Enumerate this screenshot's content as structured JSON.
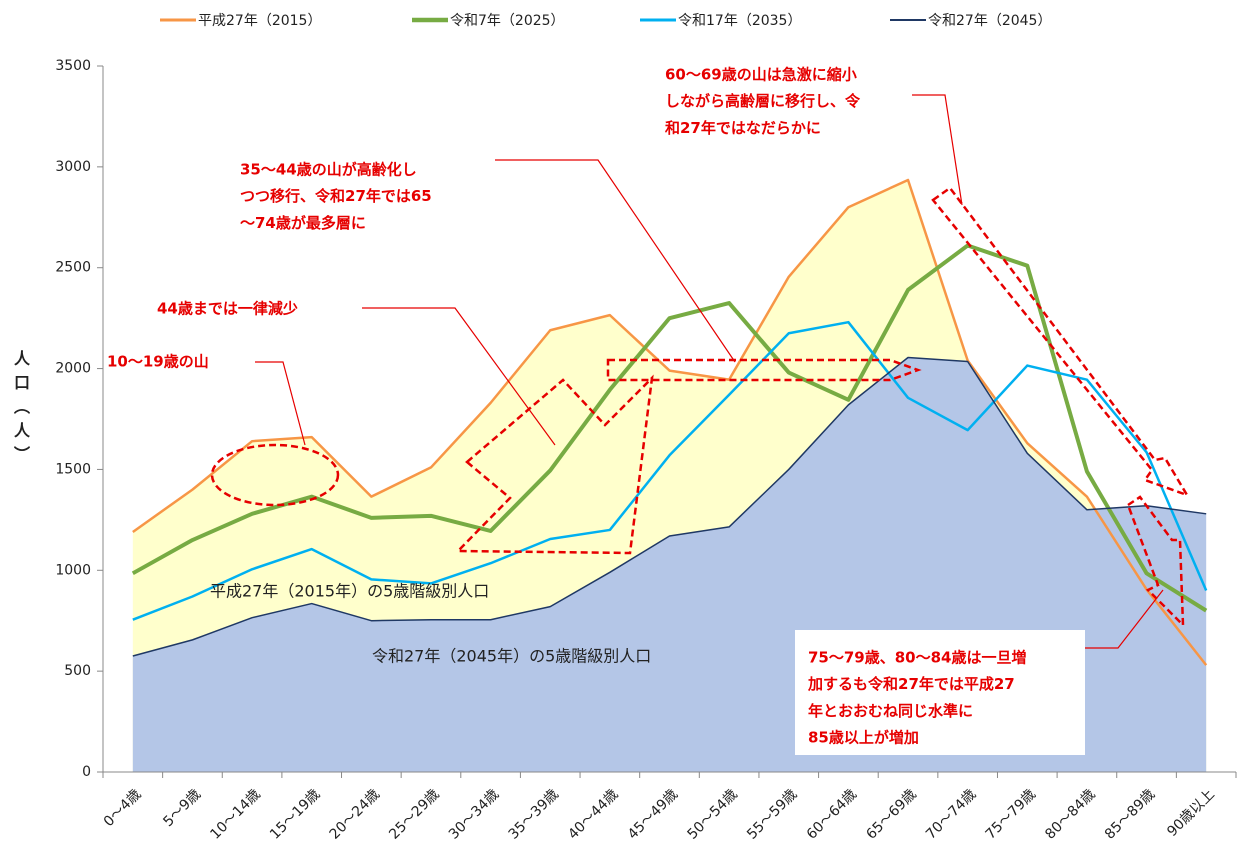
{
  "chart_data": {
    "type": "line",
    "y_label": "人口（人）",
    "categories": [
      "0〜4歳",
      "5〜9歳",
      "10〜14歳",
      "15〜19歳",
      "20〜24歳",
      "25〜29歳",
      "30〜34歳",
      "35〜39歳",
      "40〜44歳",
      "45〜49歳",
      "50〜54歳",
      "55〜59歳",
      "60〜64歳",
      "65〜69歳",
      "70〜74歳",
      "75〜79歳",
      "80〜84歳",
      "85〜89歳",
      "90歳以上"
    ],
    "series": [
      {
        "name": "平成27年（2015）",
        "color": "#f79646",
        "fill": "#ffffcc",
        "values": [
          1190,
          1400,
          1640,
          1660,
          1365,
          1510,
          1830,
          2190,
          2265,
          1990,
          1945,
          2455,
          2800,
          2935,
          2040,
          1630,
          1365,
          905,
          530
        ]
      },
      {
        "name": "令和7年（2025）",
        "color": "#77ab43",
        "values": [
          985,
          1150,
          1280,
          1365,
          1260,
          1270,
          1195,
          1495,
          1895,
          2250,
          2325,
          1980,
          1845,
          2390,
          2610,
          2510,
          1490,
          985,
          800
        ]
      },
      {
        "name": "令和17年（2035）",
        "color": "#00b0f0",
        "values": [
          755,
          870,
          1005,
          1105,
          955,
          935,
          1035,
          1155,
          1200,
          1570,
          1870,
          2175,
          2230,
          1855,
          1695,
          2015,
          1945,
          1585,
          900
        ]
      },
      {
        "name": "令和27年（2045）",
        "color": "#1f3864",
        "fill": "#b4c6e7",
        "values": [
          575,
          655,
          765,
          835,
          750,
          755,
          755,
          820,
          990,
          1170,
          1215,
          1500,
          1820,
          2055,
          2035,
          1580,
          1300,
          1320,
          1280
        ]
      }
    ],
    "ylim": [
      0,
      3500
    ],
    "yticks": [
      0,
      500,
      1000,
      1500,
      2000,
      2500,
      3000,
      3500
    ],
    "grid": false,
    "legend": "top",
    "annotations": [
      {
        "lines": [
          "60〜69歳の山は急激に縮小",
          "しながら高齢層に移行し、令",
          "和27年ではなだらかに"
        ]
      },
      {
        "lines": [
          "35〜44歳の山が高齢化し",
          "つつ移行、令和27年では65",
          "〜74歳が最多層に"
        ]
      },
      {
        "lines": [
          "44歳までは一律減少"
        ]
      },
      {
        "lines": [
          "10〜19歳の山"
        ]
      },
      {
        "lines": [
          "75〜79歳、80〜84歳は一旦増",
          "加するも令和27年では平成27",
          "年とおおむね同じ水準に",
          "85歳以上が増加"
        ]
      },
      {
        "lines": [
          "平成27年（2015年）の5歳階級別人口"
        ]
      },
      {
        "lines": [
          "令和27年（2045年）の5歳階級別人口"
        ]
      }
    ]
  }
}
